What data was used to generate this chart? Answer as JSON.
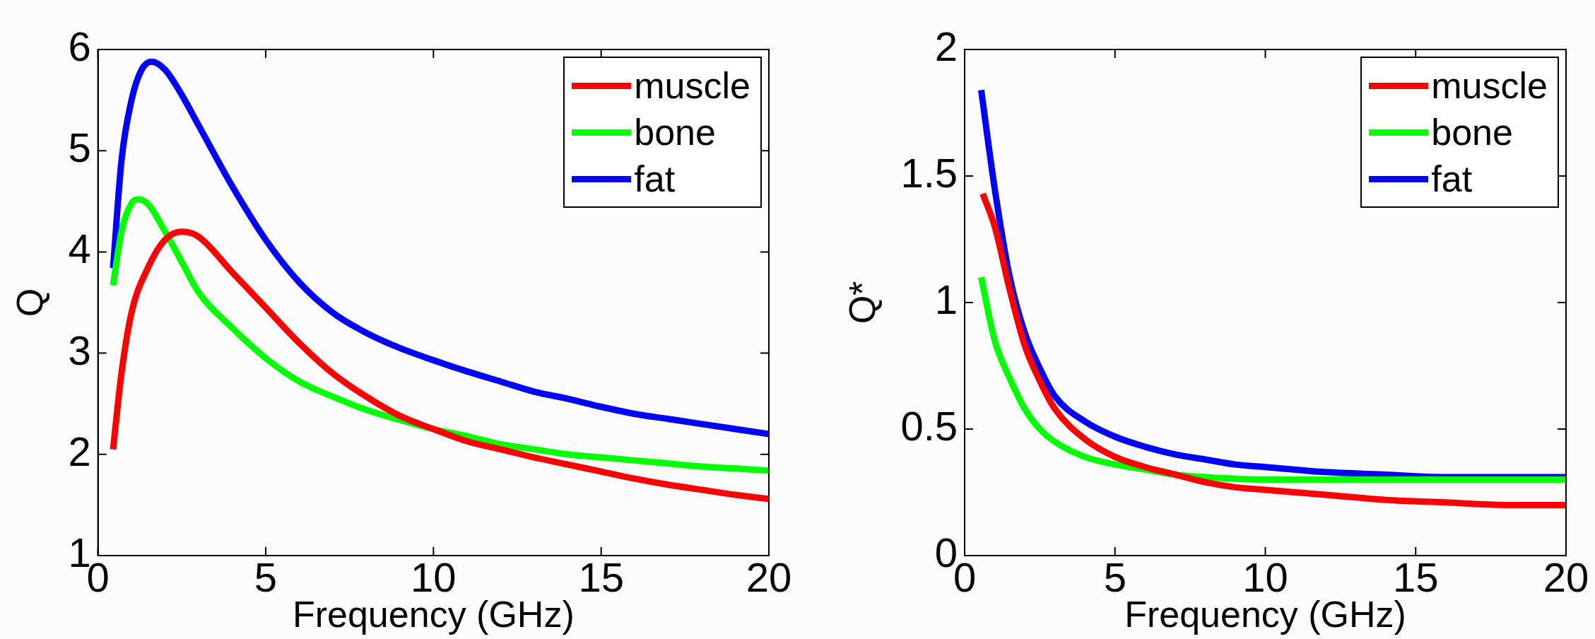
{
  "chart_data": [
    {
      "type": "line",
      "xlabel": "Frequency (GHz)",
      "ylabel": "Q",
      "xlim": [
        0,
        20
      ],
      "xticks": [
        0,
        5,
        10,
        15,
        20
      ],
      "ylim": [
        1,
        6
      ],
      "yticks": [
        1,
        2,
        3,
        4,
        5,
        6
      ],
      "legend": "top right",
      "grid": false,
      "marker": "none",
      "line_style": "solid",
      "series": [
        {
          "name": "muscle",
          "color": "#ff0000",
          "x": [
            0.45,
            0.7,
            1.0,
            1.5,
            2,
            2.5,
            3,
            4,
            5,
            6,
            7,
            8,
            9,
            10,
            11,
            12,
            13,
            14,
            15,
            16,
            17,
            18,
            19,
            20
          ],
          "values": [
            2.05,
            2.8,
            3.4,
            3.85,
            4.12,
            4.2,
            4.15,
            3.8,
            3.45,
            3.1,
            2.8,
            2.57,
            2.38,
            2.25,
            2.13,
            2.05,
            1.97,
            1.9,
            1.83,
            1.76,
            1.7,
            1.65,
            1.6,
            1.56
          ]
        },
        {
          "name": "bone",
          "color": "#00ff00",
          "x": [
            0.45,
            0.7,
            1.0,
            1.2,
            1.5,
            2,
            2.5,
            3,
            4,
            5,
            6,
            7,
            8,
            9,
            10,
            11,
            12,
            13,
            14,
            15,
            16,
            17,
            18,
            19,
            20
          ],
          "values": [
            3.67,
            4.2,
            4.48,
            4.52,
            4.47,
            4.2,
            3.9,
            3.6,
            3.25,
            2.95,
            2.72,
            2.57,
            2.44,
            2.34,
            2.25,
            2.18,
            2.1,
            2.05,
            2.0,
            1.97,
            1.94,
            1.91,
            1.88,
            1.86,
            1.84
          ]
        },
        {
          "name": "fat",
          "color": "#0000ff",
          "x": [
            0.45,
            0.7,
            1.0,
            1.3,
            1.6,
            2,
            2.5,
            3,
            4,
            5,
            6,
            7,
            8,
            9,
            10,
            11,
            12,
            13,
            14,
            15,
            16,
            17,
            18,
            19,
            20
          ],
          "values": [
            3.84,
            4.9,
            5.5,
            5.8,
            5.88,
            5.8,
            5.55,
            5.25,
            4.65,
            4.12,
            3.7,
            3.4,
            3.2,
            3.05,
            2.93,
            2.82,
            2.72,
            2.62,
            2.55,
            2.47,
            2.4,
            2.35,
            2.3,
            2.25,
            2.2
          ]
        }
      ]
    },
    {
      "type": "line",
      "xlabel": "Frequency (GHz)",
      "ylabel": "Q*",
      "xlim": [
        0,
        20
      ],
      "xticks": [
        0,
        5,
        10,
        15,
        20
      ],
      "ylim": [
        0,
        2
      ],
      "yticks": [
        0,
        0.5,
        1,
        1.5,
        2
      ],
      "legend": "top right",
      "grid": false,
      "marker": "none",
      "line_style": "solid",
      "series": [
        {
          "name": "muscle",
          "color": "#ff0000",
          "x": [
            0.6,
            1,
            1.5,
            2,
            2.5,
            3,
            4,
            5,
            6,
            7,
            8,
            9,
            10,
            12,
            14,
            16,
            18,
            20
          ],
          "values": [
            1.43,
            1.3,
            1.05,
            0.83,
            0.69,
            0.58,
            0.46,
            0.39,
            0.35,
            0.32,
            0.29,
            0.27,
            0.26,
            0.24,
            0.22,
            0.21,
            0.2,
            0.2
          ]
        },
        {
          "name": "bone",
          "color": "#00ff00",
          "x": [
            0.55,
            1,
            1.5,
            2,
            2.5,
            3,
            4,
            5,
            6,
            7,
            8,
            10,
            12,
            14,
            16,
            18,
            20
          ],
          "values": [
            1.1,
            0.85,
            0.7,
            0.58,
            0.5,
            0.45,
            0.39,
            0.36,
            0.34,
            0.32,
            0.31,
            0.3,
            0.3,
            0.3,
            0.3,
            0.3,
            0.3
          ]
        },
        {
          "name": "fat",
          "color": "#0000ff",
          "x": [
            0.55,
            1,
            1.5,
            2,
            2.5,
            3,
            4,
            5,
            6,
            7,
            8,
            9,
            10,
            12,
            14,
            16,
            18,
            20
          ],
          "values": [
            1.84,
            1.45,
            1.1,
            0.88,
            0.74,
            0.63,
            0.53,
            0.47,
            0.43,
            0.4,
            0.38,
            0.36,
            0.35,
            0.33,
            0.32,
            0.31,
            0.31,
            0.31
          ]
        }
      ]
    }
  ]
}
